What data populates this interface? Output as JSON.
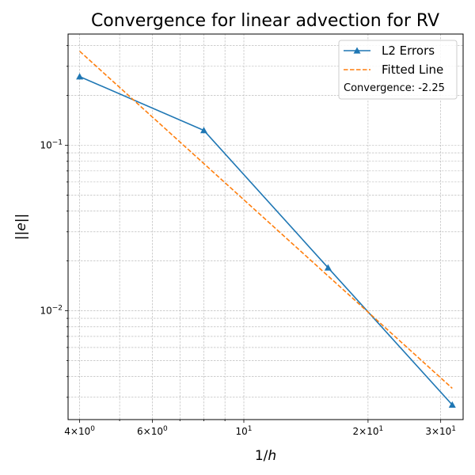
{
  "chart_data": {
    "type": "line",
    "title": "Convergence for linear advection for RV",
    "xlabel": "1/h",
    "ylabel": "||e||",
    "x_scale": "log",
    "y_scale": "log",
    "xlim": [
      3.75,
      34
    ],
    "ylim": [
      0.0022,
      0.47
    ],
    "grid": true,
    "legend_position": "top-right",
    "x_ticks": [
      {
        "value": 4,
        "mantissa": "4",
        "base": "10",
        "exponent": "0",
        "prefix": "×"
      },
      {
        "value": 6,
        "mantissa": "6",
        "base": "10",
        "exponent": "0",
        "prefix": "×"
      },
      {
        "value": 10,
        "mantissa": "",
        "base": "10",
        "exponent": "1",
        "prefix": ""
      },
      {
        "value": 20,
        "mantissa": "2",
        "base": "10",
        "exponent": "1",
        "prefix": "×"
      },
      {
        "value": 30,
        "mantissa": "3",
        "base": "10",
        "exponent": "1",
        "prefix": "×"
      }
    ],
    "y_ticks": [
      {
        "value": 0.1,
        "base": "10",
        "exponent": "−1"
      },
      {
        "value": 0.01,
        "base": "10",
        "exponent": "−2"
      }
    ],
    "series": [
      {
        "name": "L2 Errors",
        "color": "#1f77b4",
        "style": "solid",
        "marker": "triangle",
        "x": [
          4,
          8,
          16,
          32
        ],
        "y": [
          0.26,
          0.123,
          0.0182,
          0.0027
        ]
      },
      {
        "name": "Fitted Line",
        "color": "#ff7f0e",
        "style": "dashed",
        "marker": "none",
        "x": [
          4,
          32
        ],
        "y": [
          0.37,
          0.0034
        ]
      }
    ],
    "annotation": "Convergence: -2.25"
  }
}
